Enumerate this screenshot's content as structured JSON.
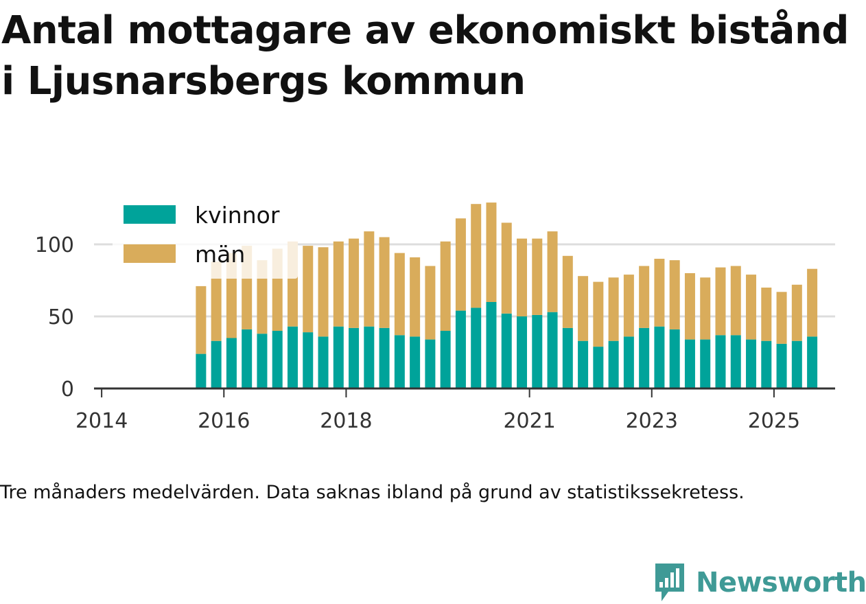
{
  "title": "Antal mottagare av ekonomiskt bistånd i Ljusnarsbergs kommun",
  "note": "Tre månaders medelvärden. Data saknas ibland på grund av statistikssekretess.",
  "brand": "Newsworthy",
  "colors": {
    "kvinnor": "#00a39a",
    "man": "#d9ac5b",
    "axis": "#333333",
    "grid": "#dddddd",
    "brand": "#3f9a96"
  },
  "chart_data": {
    "type": "bar",
    "stacked": true,
    "x_unit": "quarter",
    "x_start": 2013.875,
    "x_end": 2026.0,
    "xticks": [
      2014,
      2016,
      2018,
      2021,
      2023,
      2025
    ],
    "xtick_labels": [
      "2014",
      "2016",
      "2018",
      "2021",
      "2023",
      "2025"
    ],
    "yticks": [
      0,
      50,
      100
    ],
    "ytick_labels": [
      "0",
      "50",
      "100"
    ],
    "ylim": [
      0,
      130
    ],
    "grid": true,
    "legend_position": "top-left",
    "categories": [
      "2015 Q3",
      "2015 Q4",
      "2016 Q1",
      "2016 Q2",
      "2016 Q3",
      "2016 Q4",
      "2017 Q1",
      "2017 Q2",
      "2017 Q3",
      "2017 Q4",
      "2018 Q1",
      "2018 Q2",
      "2018 Q3",
      "2018 Q4",
      "2019 Q1",
      "2019 Q2",
      "2019 Q3",
      "2019 Q4",
      "2020 Q1",
      "2020 Q2",
      "2020 Q3",
      "2020 Q4",
      "2021 Q1",
      "2021 Q2",
      "2021 Q3",
      "2021 Q4",
      "2022 Q1",
      "2022 Q2",
      "2022 Q3",
      "2022 Q4",
      "2023 Q1",
      "2023 Q2",
      "2023 Q3",
      "2023 Q4",
      "2024 Q1",
      "2024 Q2",
      "2024 Q3",
      "2024 Q4",
      "2025 Q1",
      "2025 Q2",
      "2025 Q3"
    ],
    "x": [
      2015.625,
      2015.875,
      2016.125,
      2016.375,
      2016.625,
      2016.875,
      2017.125,
      2017.375,
      2017.625,
      2017.875,
      2018.125,
      2018.375,
      2018.625,
      2018.875,
      2019.125,
      2019.375,
      2019.625,
      2019.875,
      2020.125,
      2020.375,
      2020.625,
      2020.875,
      2021.125,
      2021.375,
      2021.625,
      2021.875,
      2022.125,
      2022.375,
      2022.625,
      2022.875,
      2023.125,
      2023.375,
      2023.625,
      2023.875,
      2024.125,
      2024.375,
      2024.625,
      2024.875,
      2025.125,
      2025.375,
      2025.625
    ],
    "series": [
      {
        "name": "kvinnor",
        "values": [
          24,
          33,
          35,
          41,
          38,
          40,
          43,
          39,
          36,
          43,
          42,
          43,
          42,
          37,
          36,
          34,
          40,
          54,
          56,
          60,
          52,
          50,
          51,
          53,
          42,
          33,
          29,
          33,
          36,
          42,
          43,
          41,
          34,
          34,
          37,
          37,
          34,
          33,
          31,
          33,
          36
        ]
      },
      {
        "name": "män",
        "values": [
          47,
          55,
          59,
          58,
          51,
          57,
          59,
          60,
          62,
          59,
          62,
          66,
          63,
          57,
          55,
          51,
          62,
          64,
          72,
          69,
          63,
          54,
          53,
          56,
          50,
          45,
          45,
          44,
          43,
          43,
          47,
          48,
          46,
          43,
          47,
          48,
          45,
          37,
          36,
          39,
          47
        ]
      }
    ]
  }
}
